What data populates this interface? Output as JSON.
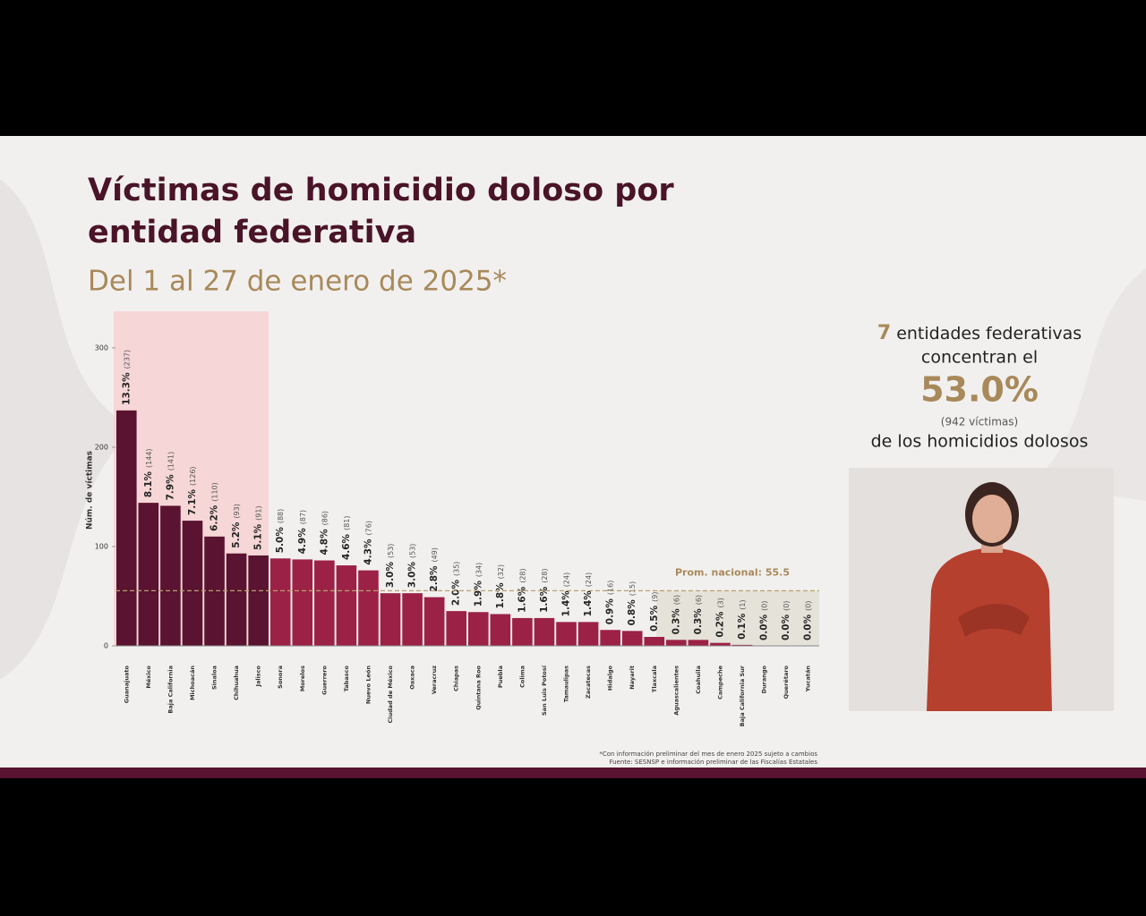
{
  "chart_data": {
    "type": "bar",
    "title": "Víctimas de homicidio doloso por",
    "title_line2": "entidad federativa",
    "subtitle": "Del 1 al 27 de enero de 2025*",
    "y_label": "Núm. de víctimas",
    "categories": [
      "Guanajuato",
      "México",
      "Baja California",
      "Michoacán",
      "Sinaloa",
      "Chihuahua",
      "Jalisco",
      "Sonora",
      "Morelos",
      "Guerrero",
      "Tabasco",
      "Nuevo León",
      "Ciudad de México",
      "Oaxaca",
      "Veracruz",
      "Chiapas",
      "Quintana Roo",
      "Puebla",
      "Colima",
      "San Luis Potosí",
      "Tamaulipas",
      "Zacatecas",
      "Hidalgo",
      "Nayarit",
      "Tlaxcala",
      "Aguascalientes",
      "Coahuila",
      "Campeche",
      "Baja California Sur",
      "Durango",
      "Querétaro",
      "Yucatán"
    ],
    "values": [
      237,
      144,
      141,
      126,
      110,
      93,
      91,
      88,
      87,
      86,
      81,
      76,
      53,
      53,
      49,
      35,
      34,
      32,
      28,
      28,
      24,
      24,
      16,
      15,
      9,
      6,
      6,
      3,
      1,
      0,
      0,
      0
    ],
    "value_labels": [
      "(237)",
      "(144)",
      "(141)",
      "(126)",
      "(110)",
      "(93)",
      "(91)",
      "(88)",
      "(87)",
      "(86)",
      "(81)",
      "(76)",
      "(53)",
      "(53)",
      "(49)",
      "(35)",
      "(34)",
      "(32)",
      "(28)",
      "(28)",
      "(24)",
      "(24)",
      "(16)",
      "(15)",
      "(9)",
      "(6)",
      "(6)",
      "(3)",
      "(1)",
      "(0)",
      "(0)",
      "(0)"
    ],
    "share_labels": [
      "13.3%",
      "8.1%",
      "7.9%",
      "7.1%",
      "6.2%",
      "5.2%",
      "5.1%",
      "5.0%",
      "4.9%",
      "4.8%",
      "4.6%",
      "4.3%",
      "3.0%",
      "3.0%",
      "2.8%",
      "2.0%",
      "1.9%",
      "1.8%",
      "1.6%",
      "1.6%",
      "1.4%",
      "1.4%",
      "0.9%",
      "0.8%",
      "0.5%",
      "0.3%",
      "0.3%",
      "0.2%",
      "0.1%",
      "0.0%",
      "0.0%",
      "0.0%"
    ],
    "colors": [
      "#5a1330",
      "#5a1330",
      "#5a1330",
      "#5a1330",
      "#5a1330",
      "#5a1330",
      "#5a1330",
      "#9c2146",
      "#9c2146",
      "#9c2146",
      "#9c2146",
      "#9c2146",
      "#9c2146",
      "#9c2146",
      "#9c2146",
      "#9c2146",
      "#9c2146",
      "#9c2146",
      "#9c2146",
      "#9c2146",
      "#9c2146",
      "#9c2146",
      "#9c2146",
      "#9c2146",
      "#9c2146",
      "#9c2146",
      "#9c2146",
      "#9c2146",
      "#9c2146",
      "#9c2146",
      "#9c2146",
      "#9c2146"
    ],
    "ylim": [
      0,
      335
    ],
    "yticks": [
      0,
      100,
      200,
      300
    ],
    "average": 55.5,
    "average_label": "Prom. nacional: 55.5"
  },
  "sidebar": {
    "count": "7",
    "line1": "entidades federativas",
    "line2": "concentran el",
    "share": "53.0%",
    "victims": "(942  víctimas)",
    "line3": "de los homicidios dolosos"
  },
  "footnotes": [
    "*Con información preliminar del mes de enero 2025 sujeto a cambios",
    "Fuente: SESNSP e información preliminar de las Fiscalías Estatales"
  ]
}
